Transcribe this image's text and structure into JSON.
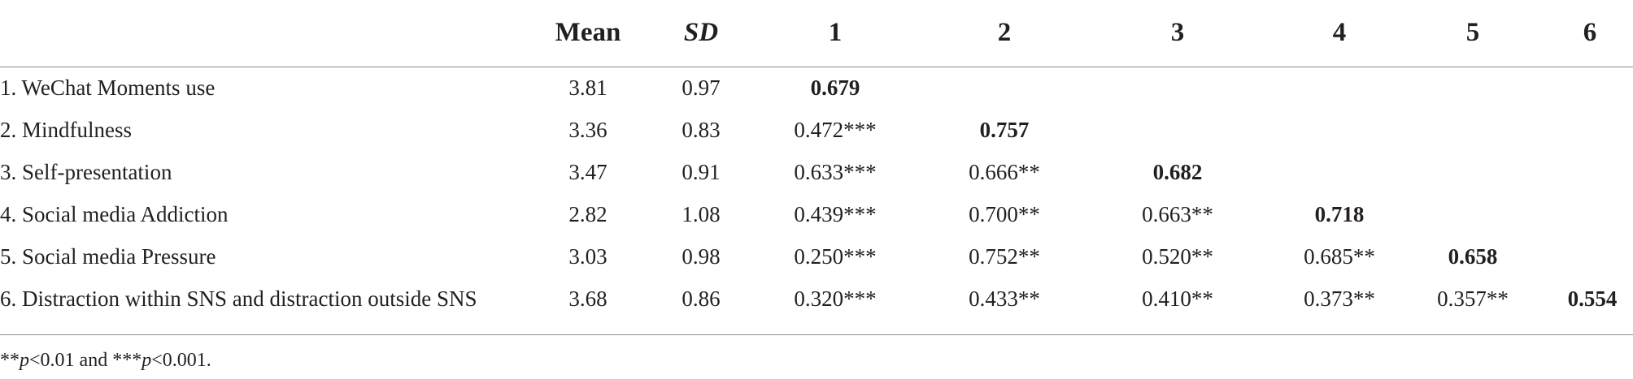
{
  "table": {
    "headers": {
      "mean": "Mean",
      "sd": "SD",
      "c1": "1",
      "c2": "2",
      "c3": "3",
      "c4": "4",
      "c5": "5",
      "c6": "6"
    },
    "rows": [
      {
        "label": "1. WeChat Moments use",
        "mean": "3.81",
        "sd": "0.97",
        "cells": [
          "0.679",
          "",
          "",
          "",
          "",
          ""
        ]
      },
      {
        "label": "2. Mindfulness",
        "mean": "3.36",
        "sd": "0.83",
        "cells": [
          "0.472***",
          "0.757",
          "",
          "",
          "",
          ""
        ]
      },
      {
        "label": "3. Self-presentation",
        "mean": "3.47",
        "sd": "0.91",
        "cells": [
          "0.633***",
          "0.666**",
          "0.682",
          "",
          "",
          ""
        ]
      },
      {
        "label": "4. Social media Addiction",
        "mean": "2.82",
        "sd": "1.08",
        "cells": [
          "0.439***",
          "0.700**",
          "0.663**",
          "0.718",
          "",
          ""
        ]
      },
      {
        "label": "5. Social media Pressure",
        "mean": "3.03",
        "sd": "0.98",
        "cells": [
          "0.250***",
          "0.752**",
          "0.520**",
          "0.685**",
          "0.658",
          ""
        ]
      },
      {
        "label": "6. Distraction within SNS and distraction outside SNS",
        "mean": "3.68",
        "sd": "0.86",
        "cells": [
          "0.320***",
          "0.433**",
          "0.410**",
          "0.373**",
          "0.357**",
          "0.554"
        ]
      }
    ]
  },
  "footnote": {
    "part1": "**",
    "p1": "p",
    "part2": "<0.01 and ***",
    "p2": "p",
    "part3": "<0.001."
  },
  "colors": {
    "text": "#231f20",
    "rule": "#8c8c8c",
    "background": "#ffffff"
  }
}
